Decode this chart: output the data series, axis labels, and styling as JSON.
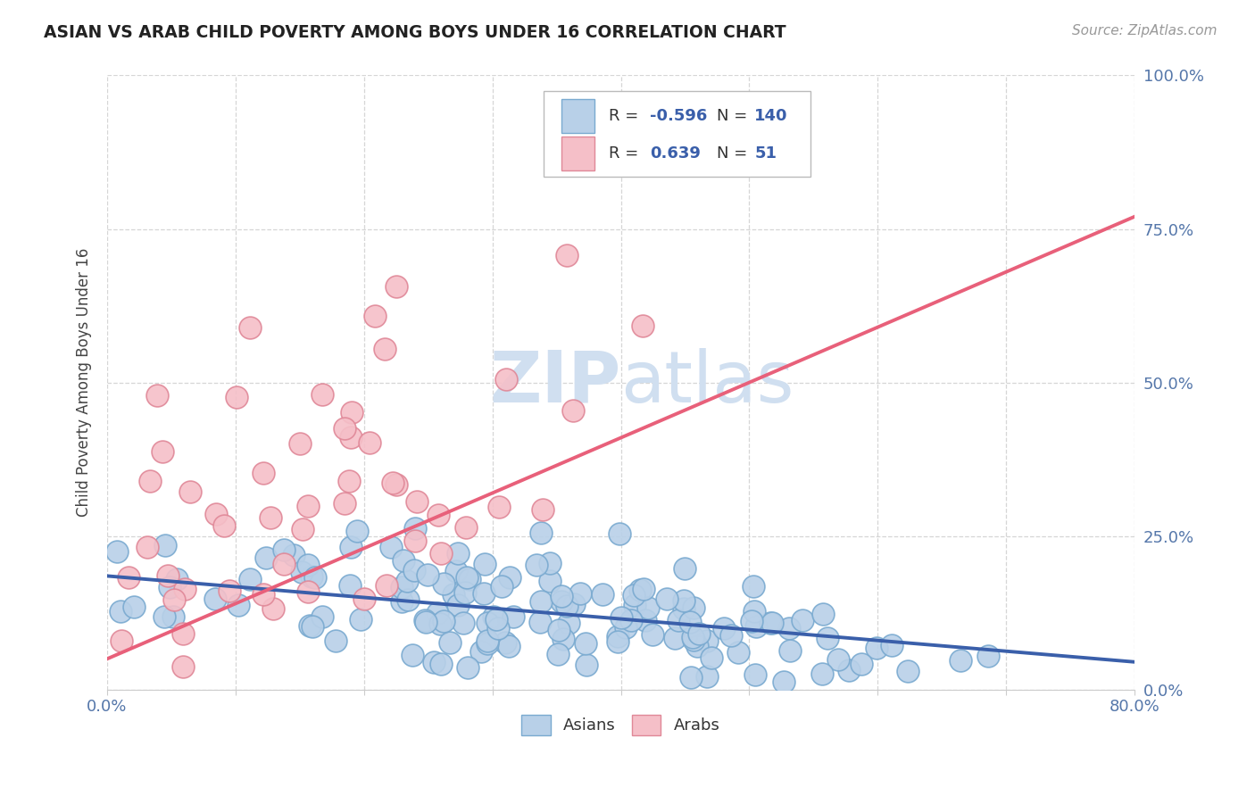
{
  "title": "ASIAN VS ARAB CHILD POVERTY AMONG BOYS UNDER 16 CORRELATION CHART",
  "source": "Source: ZipAtlas.com",
  "ylabel": "Child Poverty Among Boys Under 16",
  "xlim": [
    0.0,
    0.8
  ],
  "ylim": [
    0.0,
    1.0
  ],
  "asian_R": -0.596,
  "asian_N": 140,
  "arab_R": 0.639,
  "arab_N": 51,
  "asian_color": "#b8d0e8",
  "asian_edge": "#7aaad0",
  "arab_color": "#f5bfc8",
  "arab_edge": "#e08898",
  "trend_asian_color": "#3a5faa",
  "trend_arab_color": "#e8607a",
  "watermark_color": "#d0dff0",
  "legend_color": "#3a5faa",
  "background_color": "#ffffff",
  "grid_color": "#cccccc",
  "title_color": "#222222",
  "axis_label_color": "#444444",
  "tick_color": "#5577aa",
  "arab_trend_x0": 0.0,
  "arab_trend_y0": 0.05,
  "arab_trend_x1": 0.8,
  "arab_trend_y1": 0.77,
  "asian_trend_x0": 0.0,
  "asian_trend_y0": 0.185,
  "asian_trend_x1": 0.8,
  "asian_trend_y1": 0.045
}
